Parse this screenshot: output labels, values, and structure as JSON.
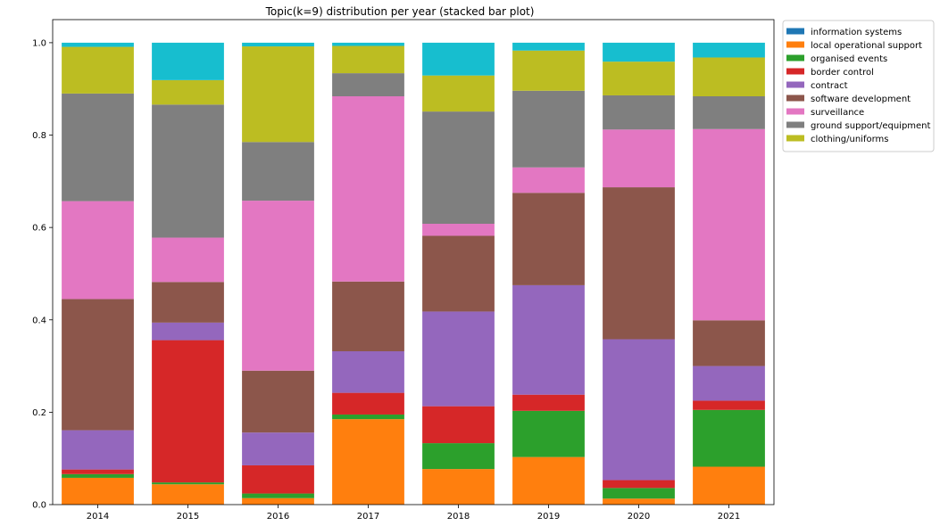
{
  "chart_data": {
    "type": "bar",
    "stacked": true,
    "title": "Topic(k=9) distribution per year (stacked bar plot)",
    "xlabel": "",
    "ylabel": "",
    "categories": [
      "2014",
      "2015",
      "2016",
      "2017",
      "2018",
      "2019",
      "2020",
      "2021"
    ],
    "ylim": [
      0,
      1.05
    ],
    "yticks": [
      "0.0",
      "0.2",
      "0.4",
      "0.6",
      "0.8",
      "1.0"
    ],
    "grid": false,
    "legend_position": "outside-top-right",
    "series": [
      {
        "name": "information systems",
        "color": "#1f77b4",
        "values": [
          0,
          0,
          0,
          0,
          0,
          0,
          0,
          0
        ]
      },
      {
        "name": "local operational support",
        "color": "#ff7f0e",
        "values": [
          0.058,
          0.044,
          0.014,
          0.185,
          0.077,
          0.103,
          0.013,
          0.082
        ]
      },
      {
        "name": "organised events",
        "color": "#2ca02c",
        "values": [
          0.008,
          0.004,
          0.01,
          0.01,
          0.056,
          0.1,
          0.023,
          0.123
        ]
      },
      {
        "name": "border control",
        "color": "#d62728",
        "values": [
          0.01,
          0.308,
          0.061,
          0.047,
          0.08,
          0.035,
          0.017,
          0.02
        ]
      },
      {
        "name": "contract",
        "color": "#9467bd",
        "values": [
          0.085,
          0.038,
          0.071,
          0.09,
          0.205,
          0.237,
          0.305,
          0.075
        ]
      },
      {
        "name": "software development",
        "color": "#8c564b",
        "values": [
          0.284,
          0.088,
          0.134,
          0.151,
          0.164,
          0.2,
          0.329,
          0.099
        ]
      },
      {
        "name": "surveillance",
        "color": "#e377c2",
        "values": [
          0.212,
          0.096,
          0.368,
          0.401,
          0.026,
          0.055,
          0.125,
          0.414
        ]
      },
      {
        "name": "ground support/equipment",
        "color": "#7f7f7f",
        "values": [
          0.233,
          0.288,
          0.127,
          0.05,
          0.243,
          0.166,
          0.074,
          0.071
        ]
      },
      {
        "name": "clothing/uniforms",
        "color": "#bcbd22",
        "values": [
          0.101,
          0.053,
          0.207,
          0.059,
          0.078,
          0.087,
          0.073,
          0.084
        ]
      },
      {
        "name": "",
        "color": "#17becf",
        "values": [
          0.009,
          0.081,
          0.008,
          0.007,
          0.071,
          0.017,
          0.041,
          0.032
        ]
      }
    ]
  }
}
